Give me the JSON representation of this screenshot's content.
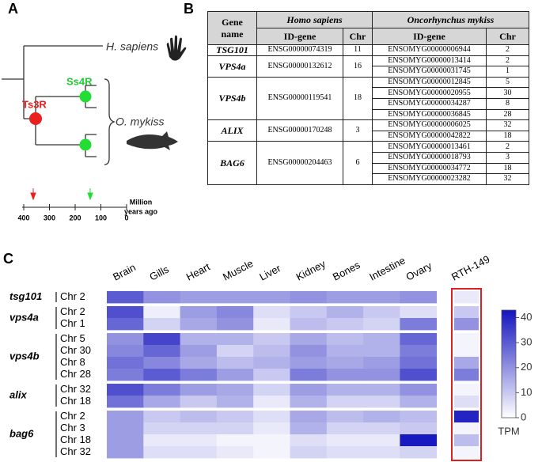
{
  "panel_a": {
    "label": "A",
    "species": "H. sapiens",
    "ts3r": "Ts3R",
    "ss4r": "Ss4R",
    "trout": "O. mykiss",
    "axis_ticks": [
      400,
      300,
      200,
      100,
      0
    ],
    "axis_label": [
      "Million",
      "years ago"
    ]
  },
  "table": {
    "label": "B",
    "header": {
      "gene": [
        "Gene",
        "name"
      ],
      "species": [
        "Homo sapiens",
        "Oncorhynchus mykiss"
      ],
      "cols": [
        "ID-gene",
        "Chr"
      ]
    },
    "groups": [
      {
        "gene": "TSG101",
        "human_id": "ENSG00000074319",
        "human_chr": 11,
        "trout": [
          [
            "ENSOMYG00000006944",
            2
          ]
        ]
      },
      {
        "gene": "VPS4a",
        "human_id": "ENSG00000132612",
        "human_chr": 16,
        "trout": [
          [
            "ENSOMYG00000013414",
            2
          ],
          [
            "ENSOMYG00000031745",
            1
          ]
        ]
      },
      {
        "gene": "VPS4b",
        "human_id": "ENSG00000119541",
        "human_chr": 18,
        "trout": [
          [
            "ENSOMYG00000012845",
            5
          ],
          [
            "ENSOMYG00000020955",
            30
          ],
          [
            "ENSOMYG00000034287",
            8
          ],
          [
            "ENSOMYG00000036845",
            28
          ]
        ]
      },
      {
        "gene": "ALIX",
        "human_id": "ENSG00000170248",
        "human_chr": 3,
        "trout": [
          [
            "ENSOMYG00000006025",
            32
          ],
          [
            "ENSOMYG00000042822",
            18
          ]
        ]
      },
      {
        "gene": "BAG6",
        "human_id": "ENSG00000204463",
        "human_chr": 6,
        "trout": [
          [
            "ENSOMYG00000013461",
            2
          ],
          [
            "ENSOMYG00000018793",
            3
          ],
          [
            "ENSOMYG00000034772",
            18
          ],
          [
            "ENSOMYG00000023282",
            32
          ]
        ]
      }
    ]
  },
  "chart_data": {
    "type": "heatmap",
    "panel_label": "C",
    "x": [
      "Brain",
      "Gills",
      "Heart",
      "Muscle",
      "Liver",
      "Kidney",
      "Bones",
      "Intestine",
      "Ovary"
    ],
    "cell_line": "RTH-149",
    "groups": [
      {
        "name": "tsg101",
        "rows": [
          {
            "label": "Chr 2",
            "values": [
              30,
              20,
              18,
              18,
              18,
              20,
              18,
              18,
              20
            ],
            "cell_line_value": 4
          }
        ]
      },
      {
        "name": "vps4a",
        "rows": [
          {
            "label": "Chr 2",
            "values": [
              32,
              3,
              18,
              22,
              6,
              10,
              14,
              10,
              6
            ],
            "cell_line_value": 10
          },
          {
            "label": "Chr 1",
            "values": [
              28,
              8,
              16,
              20,
              4,
              12,
              10,
              8,
              24
            ],
            "cell_line_value": 20
          }
        ]
      },
      {
        "name": "vps4b",
        "rows": [
          {
            "label": "Chr 5",
            "values": [
              20,
              34,
              14,
              14,
              10,
              16,
              12,
              14,
              28
            ],
            "cell_line_value": 2
          },
          {
            "label": "Chr 30",
            "values": [
              22,
              28,
              18,
              8,
              12,
              20,
              14,
              14,
              24
            ],
            "cell_line_value": 2
          },
          {
            "label": "Chr 8",
            "values": [
              26,
              22,
              16,
              12,
              14,
              18,
              16,
              18,
              26
            ],
            "cell_line_value": 16
          },
          {
            "label": "Chr 28",
            "values": [
              24,
              30,
              24,
              18,
              10,
              24,
              20,
              20,
              32
            ],
            "cell_line_value": 24
          }
        ]
      },
      {
        "name": "alix",
        "rows": [
          {
            "label": "Chr 32",
            "values": [
              32,
              24,
              18,
              16,
              8,
              18,
              14,
              14,
              20
            ],
            "cell_line_value": 2
          },
          {
            "label": "Chr 18",
            "values": [
              26,
              16,
              10,
              14,
              4,
              14,
              8,
              8,
              14
            ],
            "cell_line_value": 6
          }
        ]
      },
      {
        "name": "bag6",
        "rows": [
          {
            "label": "Chr 2",
            "values": [
              18,
              10,
              12,
              10,
              6,
              16,
              12,
              14,
              12
            ],
            "cell_line_value": 40
          },
          {
            "label": "Chr 3",
            "values": [
              18,
              8,
              8,
              8,
              4,
              14,
              8,
              8,
              10
            ],
            "cell_line_value": 2
          },
          {
            "label": "Chr 18",
            "values": [
              18,
              4,
              4,
              2,
              2,
              6,
              4,
              4,
              42
            ],
            "cell_line_value": 12
          },
          {
            "label": "Chr 32",
            "values": [
              18,
              6,
              6,
              4,
              2,
              8,
              6,
              6,
              8
            ],
            "cell_line_value": 2
          }
        ]
      }
    ],
    "zlim": [
      0,
      43
    ],
    "zticks": [
      0,
      10,
      20,
      30,
      40
    ],
    "zlabel": "TPM",
    "color_low": "#ffffff",
    "color_high": "#1414bf",
    "highlight_color": "#e02020"
  }
}
